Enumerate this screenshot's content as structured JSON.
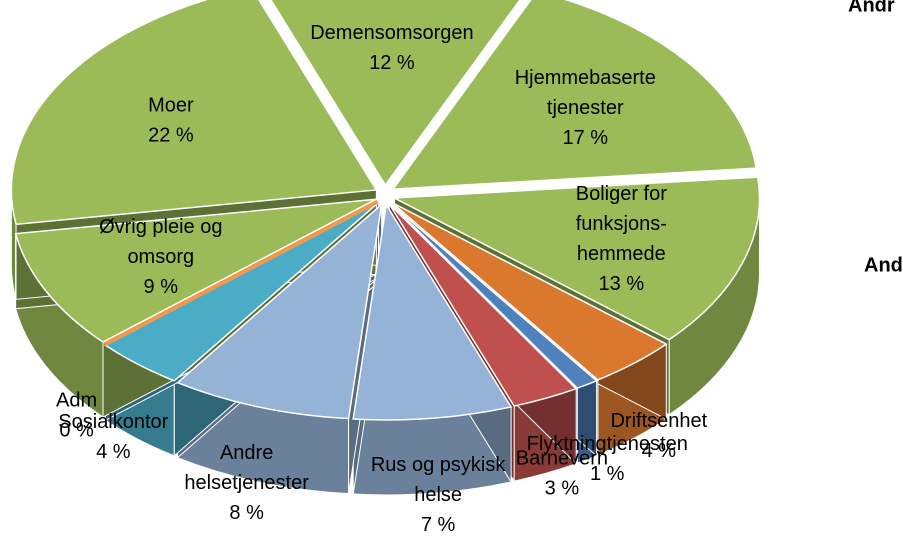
{
  "chart_data": {
    "type": "pie3d",
    "categories": [
      [
        "Demensomsorgen"
      ],
      [
        "Hjemmebaserte",
        "tjenester"
      ],
      [
        "Boliger for",
        "funksjons-",
        "hemmede"
      ],
      [
        "Driftsenhet"
      ],
      [
        "Flyktningtjenesten"
      ],
      [
        "Barnevern"
      ],
      [
        "Rus og psykisk",
        "helse"
      ],
      [
        "Andre",
        "helsetjenester"
      ],
      [
        "Sosialkontor"
      ],
      [
        "Adm"
      ],
      [
        "Øvrig pleie og",
        "omsorg"
      ],
      [
        "Moer"
      ]
    ],
    "values": [
      12,
      17,
      13,
      4,
      1,
      3,
      7,
      8,
      4,
      0,
      9,
      22
    ],
    "value_labels": [
      "12 %",
      "17 %",
      "13 %",
      "4 %",
      "1 %",
      "3 %",
      "7 %",
      "8 %",
      "4 %",
      "0 %",
      "9 %",
      "22 %"
    ],
    "colors": [
      "#9bbb59",
      "#9bbb59",
      "#9bbb59",
      "#d9782e",
      "#4f81bd",
      "#c0504d",
      "#95b3d7",
      "#95b3d7",
      "#4bacc6",
      "#f79646",
      "#9bbb59",
      "#9bbb59"
    ],
    "annotations": [
      "Andr",
      "And"
    ]
  }
}
